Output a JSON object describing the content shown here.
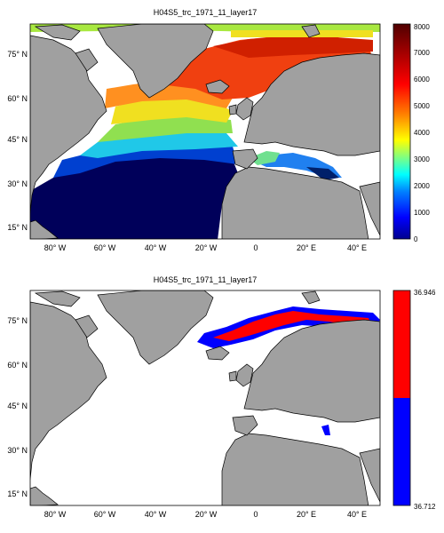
{
  "maps": [
    {
      "title": "H04S5_trc_1971_11_layer17",
      "colorbar": {
        "type": "continuous",
        "min": 0,
        "max": 8000,
        "ticks": [
          "8000",
          "7000",
          "6000",
          "5000",
          "4000",
          "3000",
          "2000",
          "1000",
          "0"
        ]
      }
    },
    {
      "title": "H04S5_trc_1971_11_layer17",
      "colorbar": {
        "type": "binary",
        "top_label": "36.946",
        "bottom_label": "36.712",
        "colors": [
          "#ff0000",
          "#0000ff"
        ]
      }
    }
  ],
  "axes": {
    "lon_labels": [
      "80° W",
      "60° W",
      "40° W",
      "20° W",
      "0",
      "20° E",
      "40° E"
    ],
    "lat_labels": [
      "75° N",
      "60° N",
      "45° N",
      "30° N",
      "15° N"
    ]
  },
  "colors": {
    "land": "#a0a0a0",
    "ocean_nodata": "#ffffff"
  }
}
